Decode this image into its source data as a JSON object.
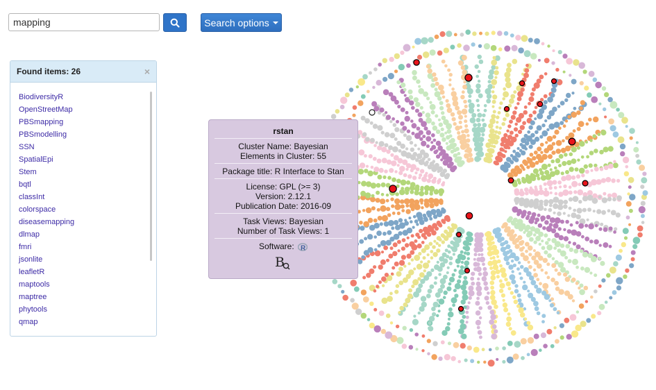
{
  "search": {
    "value": "mapping"
  },
  "toolbar": {
    "options_label": "Search options"
  },
  "panel": {
    "title": "Found items: 26",
    "close": "×",
    "items": [
      "BiodiversityR",
      "OpenStreetMap",
      "PBSmapping",
      "PBSmodelling",
      "SSN",
      "SpatialEpi",
      "Stem",
      "bqtl",
      "classInt",
      "colorspace",
      "diseasemapping",
      "dlmap",
      "fmri",
      "jsonlite",
      "leafletR",
      "maptools",
      "maptree",
      "phytools",
      "qmap"
    ]
  },
  "tooltip": {
    "name": "rstan",
    "cluster_name": "Cluster Name: Bayesian",
    "elements": "Elements in Cluster: 55",
    "package_title": "Package title: R Interface to Stan",
    "license": "License: GPL (>= 3)",
    "version": "Version: 2.12.1",
    "publication_date": "Publication Date: 2016-09",
    "task_views": "Task Views: Bayesian",
    "num_task_views": "Number of Task Views: 1",
    "software_label": "Software:"
  },
  "colors": {
    "accent": "#2f74c8",
    "tooltip_bg": "#d8c9e0",
    "highlight": "#e8141b",
    "clusters": [
      "#a6d7c7",
      "#e9e38c",
      "#f07d6d",
      "#7ea6c7",
      "#f2a35e",
      "#b3d77a",
      "#f6c7d7",
      "#cfcfcf",
      "#b97fba",
      "#c8e8bf",
      "#f9cfa0",
      "#9ec9e2",
      "#f9e88a",
      "#d8b8d8",
      "#84cbb6"
    ]
  }
}
